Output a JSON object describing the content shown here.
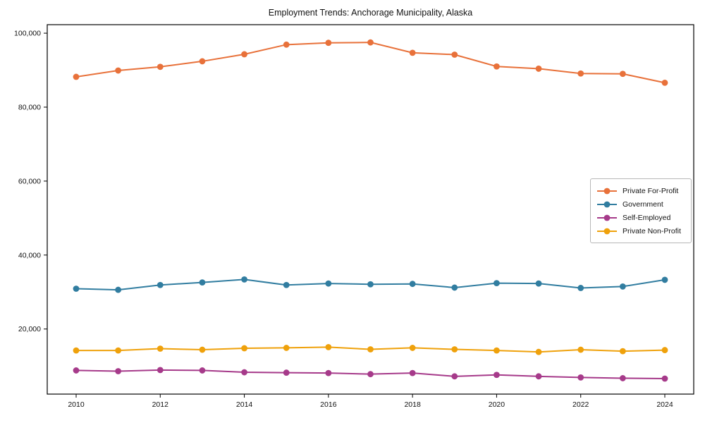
{
  "title": "Employment Trends: Anchorage Municipality, Alaska",
  "chart_data": {
    "type": "line",
    "title": "Employment Trends: Anchorage Municipality, Alaska",
    "xlabel": "",
    "ylabel": "",
    "grid": false,
    "legend_position": "center-right",
    "x": [
      2010,
      2011,
      2012,
      2013,
      2014,
      2015,
      2016,
      2017,
      2018,
      2019,
      2020,
      2021,
      2022,
      2023,
      2024
    ],
    "x_ticks": [
      2010,
      2012,
      2014,
      2016,
      2018,
      2020,
      2022,
      2024
    ],
    "y_ticks": [
      20000,
      40000,
      60000,
      80000,
      100000
    ],
    "y_tick_labels": [
      "20,000",
      "40,000",
      "60,000",
      "80,000",
      "100,000"
    ],
    "ylim": [
      2400,
      102300
    ],
    "series": [
      {
        "name": "Private For-Profit",
        "color": "#E8713A",
        "values": [
          88200,
          89900,
          90900,
          92400,
          94300,
          96900,
          97400,
          97500,
          94700,
          94200,
          91000,
          90400,
          89100,
          89000,
          86600
        ]
      },
      {
        "name": "Government",
        "color": "#317DA0",
        "values": [
          30900,
          30600,
          31900,
          32600,
          33400,
          31900,
          32300,
          32100,
          32200,
          31200,
          32400,
          32300,
          31100,
          31500,
          33300
        ]
      },
      {
        "name": "Self-Employed",
        "color": "#A63A8A",
        "values": [
          8800,
          8600,
          8900,
          8800,
          8300,
          8200,
          8100,
          7800,
          8100,
          7200,
          7600,
          7200,
          6900,
          6700,
          6600
        ]
      },
      {
        "name": "Private Non-Profit",
        "color": "#EFA10B",
        "values": [
          14200,
          14200,
          14700,
          14400,
          14800,
          14900,
          15100,
          14500,
          14900,
          14500,
          14200,
          13800,
          14400,
          14000,
          14300
        ]
      }
    ]
  }
}
